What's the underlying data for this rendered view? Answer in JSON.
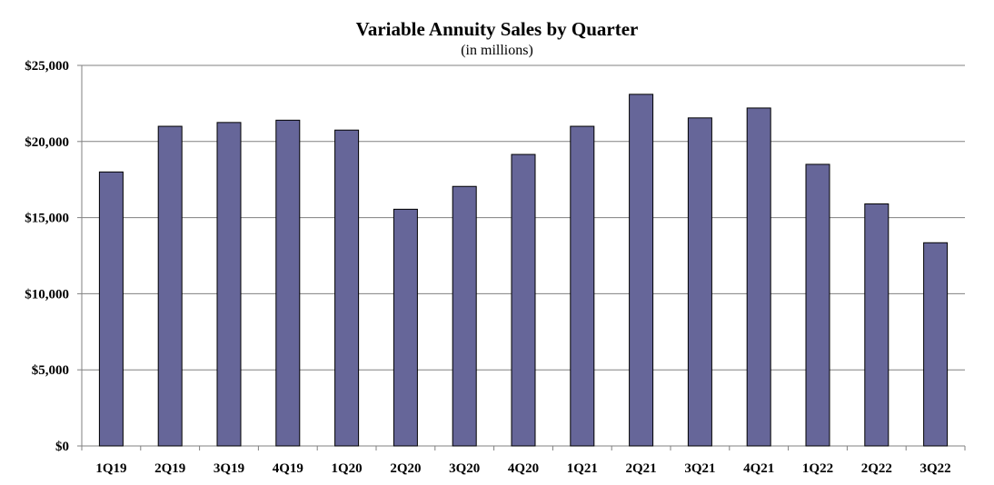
{
  "chart_data": {
    "type": "bar",
    "title": "Variable Annuity Sales by Quarter",
    "subtitle": "(in millions)",
    "xlabel": "",
    "ylabel": "",
    "categories": [
      "1Q19",
      "2Q19",
      "3Q19",
      "4Q19",
      "1Q20",
      "2Q20",
      "3Q20",
      "4Q20",
      "1Q21",
      "2Q21",
      "3Q21",
      "4Q21",
      "1Q22",
      "2Q22",
      "3Q22"
    ],
    "values": [
      18000,
      21000,
      21250,
      21400,
      20750,
      15550,
      17050,
      19150,
      21000,
      23100,
      21550,
      22200,
      18500,
      15900,
      13350
    ],
    "ylim": [
      0,
      25000
    ],
    "yticks": [
      0,
      5000,
      10000,
      15000,
      20000,
      25000
    ],
    "ytick_labels": [
      "$0",
      "$5,000",
      "$10,000",
      "$15,000",
      "$20,000",
      "$25,000"
    ],
    "grid": true,
    "legend": "none",
    "colors": {
      "bar": "#666699",
      "bar_stroke": "#000000",
      "grid": "#808080",
      "axis": "#808080"
    }
  }
}
